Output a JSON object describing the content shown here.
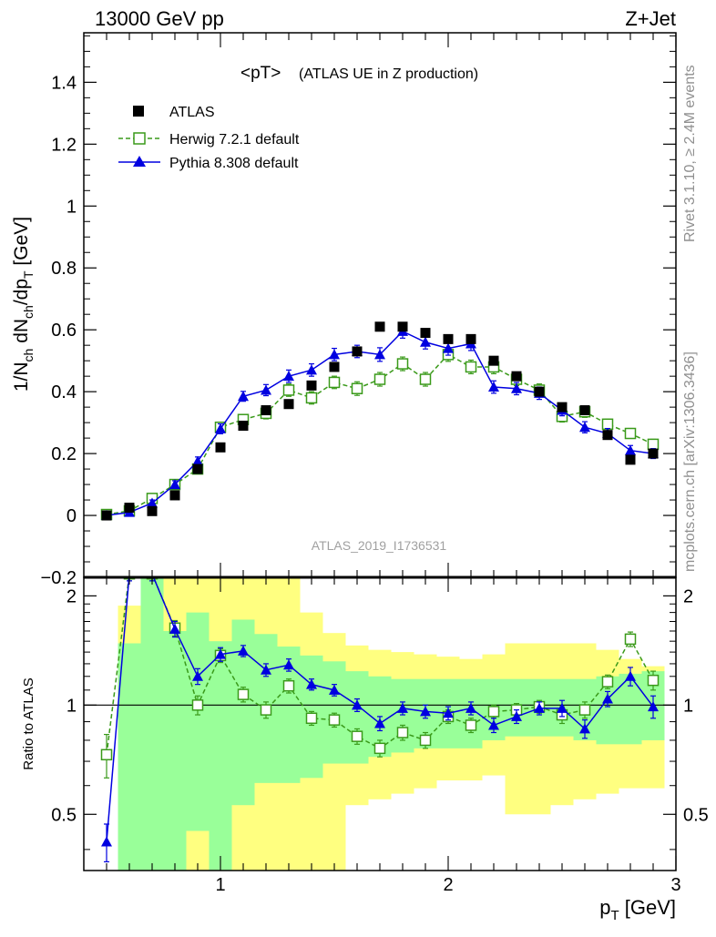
{
  "header": {
    "left": "13000 GeV pp",
    "right": "Z+Jet"
  },
  "side_text": {
    "rivet": "Rivet 3.1.10, ≥ 2.4M events",
    "mcplots": "mcplots.cern.ch [arXiv:1306.3436]"
  },
  "chart_data": [
    {
      "type": "scatter",
      "title": "<pT> (ATLAS UE in Z production)",
      "title_main": "<pT>",
      "title_sub": "(ATLAS UE in Z production)",
      "watermark": "ATLAS_2019_I1736531",
      "ylabel": "1/N_ch dN_ch/dp_T [GeV]",
      "xlim": [
        0.4,
        3.0
      ],
      "ylim": [
        -0.2,
        1.56
      ],
      "x_ticks": [
        1,
        2,
        3
      ],
      "y_ticks": [
        -0.2,
        0,
        0.2,
        0.4,
        0.6,
        0.8,
        1,
        1.2,
        1.4
      ],
      "y_tick_labels": [
        "−0.2",
        "0",
        "0.2",
        "0.4",
        "0.6",
        "0.8",
        "1",
        "1.2",
        "1.4"
      ],
      "legend_position": "top-left",
      "x": [
        0.5,
        0.6,
        0.7,
        0.8,
        0.9,
        1.0,
        1.1,
        1.2,
        1.3,
        1.4,
        1.5,
        1.6,
        1.7,
        1.8,
        1.9,
        2.0,
        2.1,
        2.2,
        2.3,
        2.4,
        2.5,
        2.6,
        2.7,
        2.8,
        2.9
      ],
      "series": [
        {
          "name": "ATLAS",
          "style": "data",
          "color": "#000000",
          "values": [
            0.0,
            0.025,
            0.014,
            0.065,
            0.15,
            0.22,
            0.29,
            0.34,
            0.36,
            0.42,
            0.48,
            0.53,
            0.61,
            0.61,
            0.59,
            0.57,
            0.57,
            0.5,
            0.45,
            0.4,
            0.35,
            0.34,
            0.26,
            0.18,
            0.2
          ]
        },
        {
          "name": "Herwig 7.2.1 default",
          "style": "dashed-open-square",
          "color": "#3a9a1a",
          "values": [
            0.003,
            0.015,
            0.055,
            0.1,
            0.15,
            0.285,
            0.31,
            0.33,
            0.405,
            0.38,
            0.43,
            0.41,
            0.44,
            0.49,
            0.44,
            0.52,
            0.48,
            0.48,
            0.44,
            0.405,
            0.32,
            0.335,
            0.295,
            0.265,
            0.23
          ],
          "errors": [
            0.008,
            0.008,
            0.012,
            0.014,
            0.014,
            0.016,
            0.016,
            0.018,
            0.02,
            0.02,
            0.02,
            0.022,
            0.022,
            0.022,
            0.022,
            0.022,
            0.022,
            0.022,
            0.02,
            0.02,
            0.018,
            0.018,
            0.016,
            0.016,
            0.016
          ]
        },
        {
          "name": "Pythia 8.308 default",
          "style": "solid-filled-triangle",
          "color": "#0000e0",
          "values": [
            0.0,
            0.01,
            0.04,
            0.1,
            0.175,
            0.28,
            0.385,
            0.405,
            0.45,
            0.47,
            0.52,
            0.53,
            0.52,
            0.595,
            0.56,
            0.54,
            0.555,
            0.415,
            0.41,
            0.395,
            0.34,
            0.285,
            0.265,
            0.21,
            0.2
          ],
          "errors": [
            0.006,
            0.008,
            0.01,
            0.012,
            0.014,
            0.016,
            0.016,
            0.018,
            0.02,
            0.02,
            0.02,
            0.02,
            0.022,
            0.022,
            0.022,
            0.022,
            0.022,
            0.02,
            0.02,
            0.02,
            0.018,
            0.018,
            0.016,
            0.016,
            0.016
          ]
        }
      ]
    },
    {
      "type": "scatter",
      "ylabel": "Ratio to ATLAS",
      "xlabel": "p_T [GeV]",
      "xlim": [
        0.4,
        3.0
      ],
      "ylim": [
        0.35,
        2.25
      ],
      "x_ticks": [
        1,
        2,
        3
      ],
      "y_ticks": [
        0.5,
        1,
        2
      ],
      "reference_line": 1,
      "x": [
        0.5,
        0.6,
        0.7,
        0.8,
        0.9,
        1.0,
        1.1,
        1.2,
        1.3,
        1.4,
        1.5,
        1.6,
        1.7,
        1.8,
        1.9,
        2.0,
        2.1,
        2.2,
        2.3,
        2.4,
        2.5,
        2.6,
        2.7,
        2.8,
        2.9
      ],
      "bands": {
        "bin_edges": [
          0.55,
          0.65,
          0.75,
          0.85,
          0.95,
          1.05,
          1.15,
          1.25,
          1.35,
          1.45,
          1.55,
          1.65,
          1.75,
          1.85,
          1.95,
          2.05,
          2.15,
          2.25,
          2.35,
          2.45,
          2.55,
          2.65,
          2.75,
          2.85,
          2.95
        ],
        "green_low": [
          0.35,
          0.35,
          0.35,
          0.45,
          0.35,
          0.53,
          0.61,
          0.61,
          0.63,
          0.69,
          0.69,
          0.72,
          0.74,
          0.76,
          0.76,
          0.76,
          0.8,
          0.82,
          0.82,
          0.82,
          0.8,
          0.78,
          0.78,
          0.8
        ],
        "green_high": [
          1.48,
          2.25,
          1.6,
          1.8,
          1.5,
          1.72,
          1.57,
          1.45,
          1.37,
          1.32,
          1.24,
          1.2,
          1.18,
          1.18,
          1.18,
          1.18,
          1.18,
          1.18,
          1.18,
          1.18,
          1.18,
          1.2,
          1.22,
          1.24
        ],
        "yellow_low": [
          0.35,
          0.35,
          0.35,
          0.35,
          0.35,
          0.35,
          0.35,
          0.35,
          0.35,
          0.35,
          0.53,
          0.55,
          0.57,
          0.59,
          0.62,
          0.62,
          0.64,
          0.5,
          0.5,
          0.53,
          0.55,
          0.57,
          0.59,
          0.59
        ],
        "yellow_high": [
          1.88,
          2.25,
          2.25,
          2.25,
          2.25,
          2.25,
          2.25,
          2.25,
          1.8,
          1.58,
          1.46,
          1.42,
          1.4,
          1.38,
          1.36,
          1.34,
          1.38,
          1.48,
          1.48,
          1.48,
          1.48,
          1.42,
          1.34,
          1.28
        ]
      },
      "series": [
        {
          "name": "Herwig 7.2.1 default",
          "color": "#3a9a1a",
          "values": [
            0.73,
            2.3,
            2.3,
            1.63,
            1.0,
            1.37,
            1.07,
            0.97,
            1.13,
            0.92,
            0.91,
            0.82,
            0.76,
            0.84,
            0.8,
            0.93,
            0.88,
            0.96,
            0.97,
            0.99,
            0.94,
            0.97,
            1.16,
            1.52,
            1.17
          ],
          "errors": [
            0.1,
            0.1,
            0.1,
            0.08,
            0.06,
            0.06,
            0.05,
            0.05,
            0.05,
            0.04,
            0.04,
            0.04,
            0.04,
            0.04,
            0.04,
            0.04,
            0.04,
            0.04,
            0.04,
            0.04,
            0.05,
            0.05,
            0.05,
            0.07,
            0.07
          ]
        },
        {
          "name": "Pythia 8.308 default",
          "color": "#0000e0",
          "values": [
            0.42,
            2.3,
            2.3,
            1.62,
            1.2,
            1.38,
            1.41,
            1.25,
            1.29,
            1.14,
            1.1,
            1.0,
            0.89,
            0.98,
            0.96,
            0.95,
            0.98,
            0.88,
            0.93,
            0.98,
            0.98,
            0.86,
            1.04,
            1.2,
            0.99
          ],
          "errors": [
            0.05,
            0.1,
            0.1,
            0.08,
            0.06,
            0.06,
            0.05,
            0.05,
            0.05,
            0.04,
            0.04,
            0.04,
            0.04,
            0.04,
            0.04,
            0.04,
            0.04,
            0.04,
            0.04,
            0.04,
            0.05,
            0.05,
            0.05,
            0.07,
            0.07
          ]
        }
      ]
    }
  ]
}
